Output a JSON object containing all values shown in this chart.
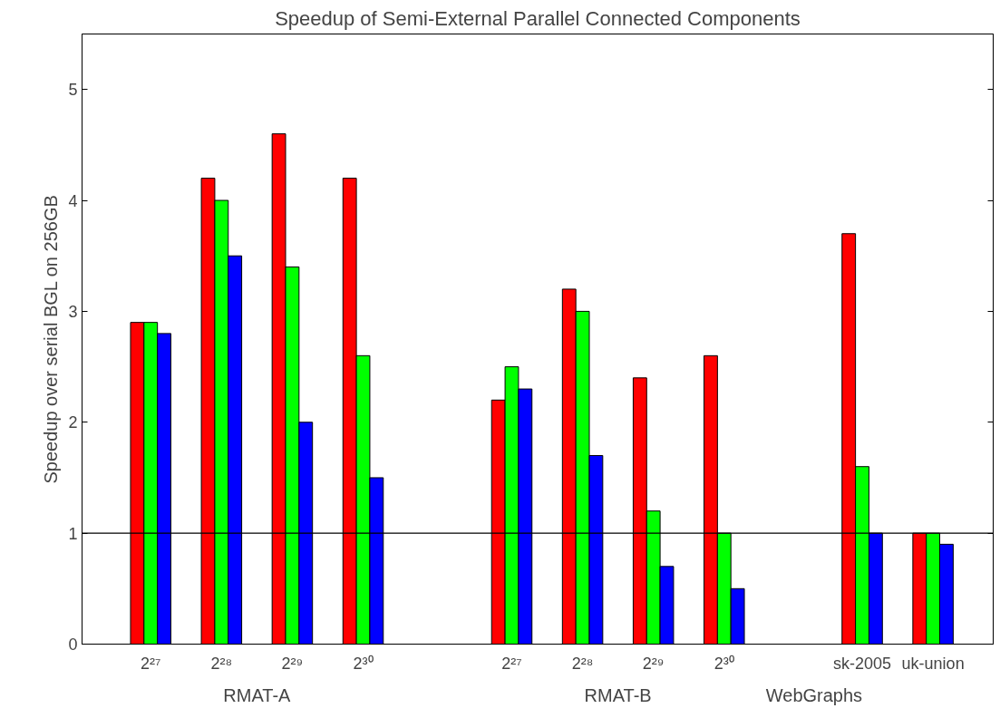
{
  "chart_data": {
    "type": "bar",
    "title": "Speedup of Semi-External Parallel Connected Components",
    "ylabel": "Speedup over serial BGL on 256GB",
    "categories": [
      "2²⁷",
      "2²⁸",
      "2²⁹",
      "2³⁰",
      "2²⁷",
      "2²⁸",
      "2²⁹",
      "2³⁰",
      "sk-2005",
      "uk-union"
    ],
    "series": [
      {
        "color": "#ff0000",
        "values": [
          2.9,
          4.2,
          4.6,
          4.2,
          2.2,
          3.2,
          2.4,
          2.6,
          3.7,
          1.0
        ]
      },
      {
        "color": "#00ff00",
        "values": [
          2.9,
          4.0,
          3.4,
          2.6,
          2.5,
          3.0,
          1.2,
          1.0,
          1.6,
          1.0
        ]
      },
      {
        "color": "#0000ff",
        "values": [
          2.8,
          3.5,
          2.0,
          1.5,
          2.3,
          1.7,
          0.7,
          0.5,
          1.0,
          0.9
        ]
      }
    ],
    "ylim": [
      0,
      5.5
    ],
    "yticks": [
      0,
      1,
      2,
      3,
      4,
      5
    ],
    "grid": false,
    "ref_lines": [
      {
        "axis": "y",
        "value": 1,
        "color": "#000000"
      }
    ],
    "annotations": [
      "RMAT-A",
      "RMAT-B",
      "WebGraphs"
    ]
  }
}
